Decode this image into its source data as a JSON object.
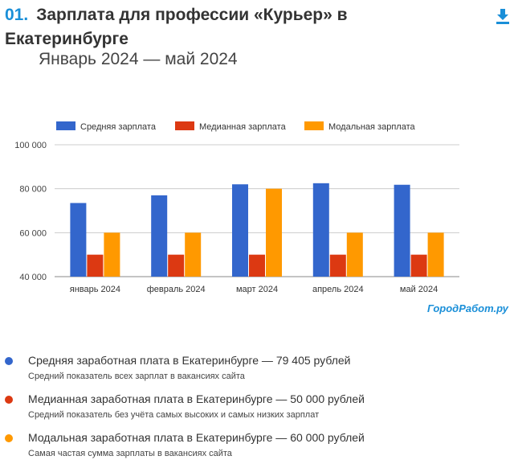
{
  "header": {
    "number": "01.",
    "title_line1": "Зарплата для профессии «Курьер» в",
    "title_line2": "Екатеринбурге",
    "subtitle": "Январь 2024 — май 2024"
  },
  "watermark": "ГородРабот.ру",
  "icons": {
    "download": "download-icon"
  },
  "colors": {
    "accent": "#1a8fd8",
    "avg": "#3366cc",
    "median": "#dc3912",
    "mode": "#ff9900"
  },
  "chart_data": {
    "type": "bar",
    "categories": [
      "январь 2024",
      "февраль 2024",
      "март 2024",
      "апрель 2024",
      "май 2024"
    ],
    "series": [
      {
        "name": "Средняя зарплата",
        "color": "#3366cc",
        "values": [
          73500,
          77000,
          82000,
          82500,
          81800
        ]
      },
      {
        "name": "Медианная зарплата",
        "color": "#dc3912",
        "values": [
          50000,
          50000,
          50000,
          50000,
          50000
        ]
      },
      {
        "name": "Модальная зарплата",
        "color": "#ff9900",
        "values": [
          60000,
          60000,
          80000,
          60000,
          60000
        ]
      }
    ],
    "ylim": [
      40000,
      100000
    ],
    "yticks": [
      40000,
      60000,
      80000,
      100000
    ],
    "ytick_labels": [
      "40 000",
      "60 000",
      "80 000",
      "100 000"
    ],
    "legend_position": "top",
    "grid": true
  },
  "notes": [
    {
      "color": "#3366cc",
      "title": "Средняя заработная плата в Екатеринбурге — 79 405 рублей",
      "desc": "Средний показатель всех зарплат в вакансиях сайта"
    },
    {
      "color": "#dc3912",
      "title": "Медианная заработная плата в Екатеринбурге — 50 000 рублей",
      "desc": "Средний показатель без учёта самых высоких и самых низких зарплат"
    },
    {
      "color": "#ff9900",
      "title": "Модальная заработная плата в Екатеринбурге — 60 000 рублей",
      "desc": "Самая частая сумма зарплаты в вакансиях сайта"
    }
  ]
}
